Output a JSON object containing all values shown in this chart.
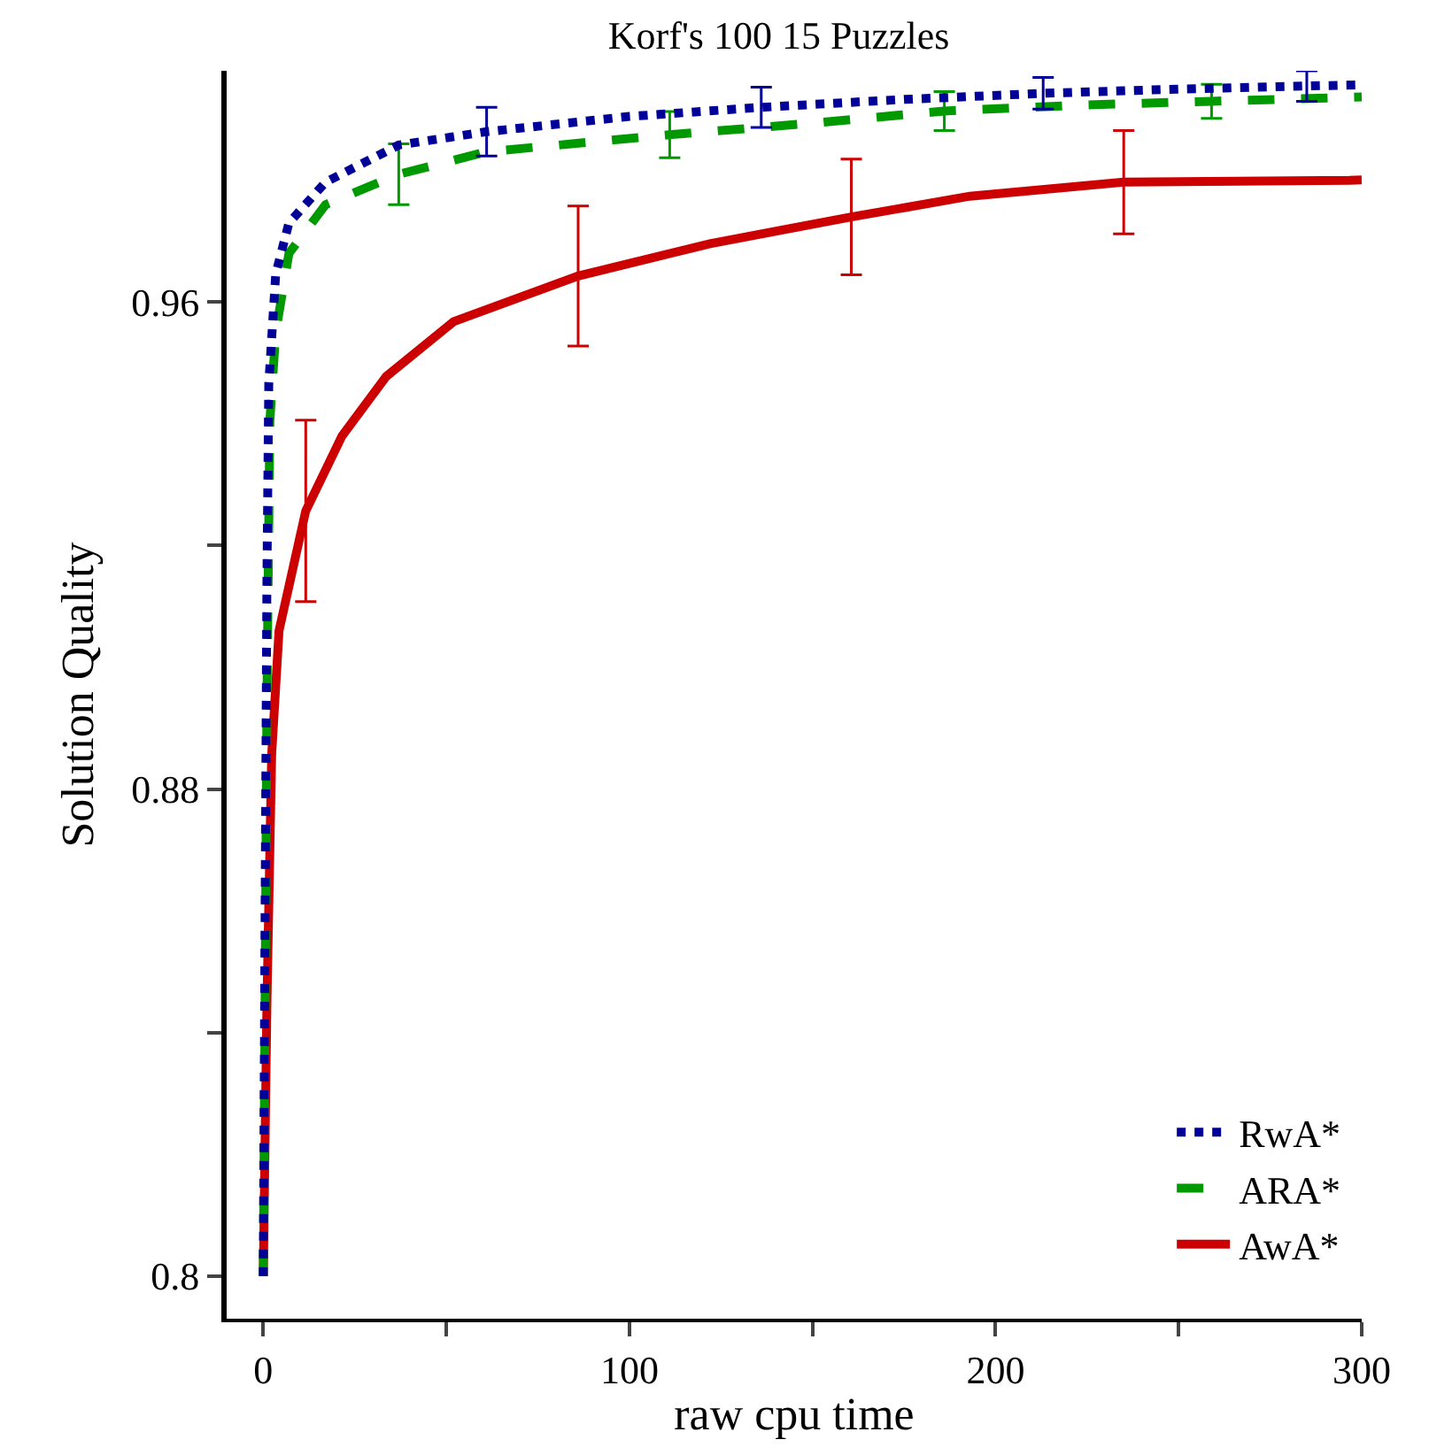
{
  "chart_data": {
    "type": "line",
    "title": "Korf's 100 15 Puzzles",
    "xlabel": "raw cpu time",
    "ylabel": "Solution Quality",
    "xlim": [
      -10,
      300
    ],
    "ylim": [
      0.793,
      0.998
    ],
    "xticks": [
      0,
      {
        "value": 50,
        "label": null
      },
      100,
      {
        "value": 150,
        "label": null
      },
      200,
      {
        "value": 250,
        "label": null
      },
      300
    ],
    "yticks": [
      0.8,
      {
        "value": 0.84,
        "label": null
      },
      0.88,
      {
        "value": 0.92,
        "label": null
      },
      0.96
    ],
    "grid": false,
    "legend": "bottom right",
    "marker": "none",
    "series": [
      {
        "name": "RwA*",
        "color": "#000099",
        "line_style": "dotted",
        "x": [
          0,
          0.5,
          1,
          1.5,
          3.4,
          7,
          17,
          37,
          61,
          100,
          136,
          175,
          213,
          250,
          285,
          300
        ],
        "values": [
          0.8,
          0.86,
          0.915,
          0.9466,
          0.9646,
          0.973,
          0.9797,
          0.9858,
          0.988,
          0.9905,
          0.992,
          0.9933,
          0.9943,
          0.995,
          0.9955,
          0.9957
        ],
        "errors": [
          null,
          null,
          null,
          null,
          null,
          null,
          null,
          null,
          0.004,
          null,
          0.0033,
          null,
          0.0026,
          null,
          0.0025,
          null
        ]
      },
      {
        "name": "ARA*",
        "color": "#009900",
        "line_style": "dashed",
        "x": [
          0,
          0.5,
          1,
          1.8,
          3.4,
          7,
          17,
          37,
          61,
          111,
          150,
          186,
          225,
          259,
          300
        ],
        "values": [
          0.8,
          0.845,
          0.895,
          0.9405,
          0.955,
          0.968,
          0.976,
          0.981,
          0.9847,
          0.9875,
          0.9894,
          0.9914,
          0.9924,
          0.993,
          0.9937
        ],
        "errors": [
          null,
          null,
          null,
          null,
          null,
          null,
          null,
          0.005,
          null,
          0.0038,
          null,
          0.0032,
          null,
          0.0028,
          null
        ]
      },
      {
        "name": "AwA*",
        "color": "#cc0000",
        "line_style": "solid",
        "x": [
          0,
          1,
          2.3,
          4.3,
          11.6,
          21.5,
          33.6,
          52,
          86,
          122,
          160.6,
          193,
          235,
          296.6,
          300
        ],
        "values": [
          0.8,
          0.845,
          0.8857,
          0.906,
          0.9257,
          0.938,
          0.9478,
          0.9568,
          0.9643,
          0.9696,
          0.974,
          0.9774,
          0.9797,
          0.98,
          0.9801
        ],
        "errors": [
          null,
          null,
          null,
          null,
          0.0149,
          null,
          null,
          null,
          0.0115,
          null,
          0.0095,
          null,
          0.0085,
          null,
          null
        ]
      }
    ]
  }
}
